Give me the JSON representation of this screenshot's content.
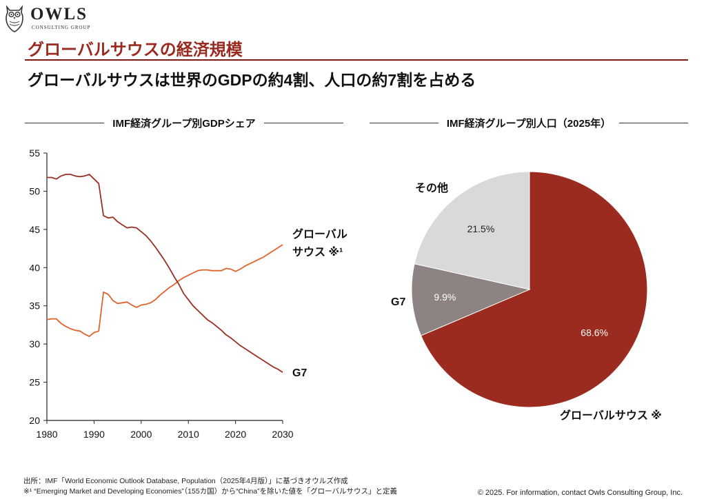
{
  "brand": {
    "name": "OWLS",
    "tagline": "CONSULTING GROUP"
  },
  "page_title": "グローバルサウスの経済規模",
  "headline": "グローバルサウスは世界のGDPの約4割、人口の約7割を占める",
  "colors": {
    "accent": "#9a2a1f",
    "south_line": "#e0612a",
    "g7_line": "#9b2e22",
    "pie_south": "#9b2a1f",
    "pie_g7": "#8d8383",
    "pie_other": "#d9d9db"
  },
  "chart_data": [
    {
      "type": "line",
      "title": "IMF経済グループ別GDPシェア",
      "xlabel": "",
      "ylabel": "",
      "xlim": [
        1980,
        2030
      ],
      "ylim": [
        20,
        55
      ],
      "xticks": [
        1980,
        1990,
        2000,
        2010,
        2020,
        2030
      ],
      "yticks": [
        20,
        25,
        30,
        35,
        40,
        45,
        50,
        55
      ],
      "grid": false,
      "series": [
        {
          "name": "グローバルサウス ※¹",
          "label_lines": [
            "グローバル",
            "サウス ※¹"
          ],
          "x": [
            1980,
            1981,
            1982,
            1983,
            1984,
            1985,
            1986,
            1987,
            1988,
            1989,
            1990,
            1991,
            1992,
            1993,
            1994,
            1995,
            1996,
            1997,
            1998,
            1999,
            2000,
            2001,
            2002,
            2003,
            2004,
            2005,
            2006,
            2007,
            2008,
            2009,
            2010,
            2011,
            2012,
            2013,
            2014,
            2015,
            2016,
            2017,
            2018,
            2019,
            2020,
            2021,
            2022,
            2023,
            2024,
            2025,
            2026,
            2027,
            2028,
            2029,
            2030
          ],
          "values": [
            33.2,
            33.3,
            33.3,
            32.7,
            32.3,
            32.0,
            31.8,
            31.7,
            31.3,
            31.0,
            31.5,
            31.7,
            36.8,
            36.5,
            35.7,
            35.3,
            35.4,
            35.5,
            35.1,
            34.8,
            35.1,
            35.2,
            35.4,
            35.8,
            36.4,
            36.9,
            37.4,
            37.8,
            38.3,
            38.7,
            39.0,
            39.3,
            39.6,
            39.7,
            39.7,
            39.6,
            39.6,
            39.6,
            39.9,
            39.8,
            39.5,
            39.8,
            40.2,
            40.5,
            40.8,
            41.1,
            41.4,
            41.8,
            42.2,
            42.6,
            43.0
          ]
        },
        {
          "name": "G7",
          "label_lines": [
            "G7"
          ],
          "x": [
            1980,
            1981,
            1982,
            1983,
            1984,
            1985,
            1986,
            1987,
            1988,
            1989,
            1990,
            1991,
            1992,
            1993,
            1994,
            1995,
            1996,
            1997,
            1998,
            1999,
            2000,
            2001,
            2002,
            2003,
            2004,
            2005,
            2006,
            2007,
            2008,
            2009,
            2010,
            2011,
            2012,
            2013,
            2014,
            2015,
            2016,
            2017,
            2018,
            2019,
            2020,
            2021,
            2022,
            2023,
            2024,
            2025,
            2026,
            2027,
            2028,
            2029,
            2030
          ],
          "values": [
            51.8,
            51.8,
            51.6,
            52.0,
            52.2,
            52.2,
            52.0,
            51.9,
            52.0,
            52.2,
            51.6,
            51.0,
            46.8,
            46.5,
            46.6,
            46.0,
            45.6,
            45.2,
            45.3,
            45.2,
            44.7,
            44.2,
            43.5,
            42.7,
            41.8,
            40.9,
            39.9,
            38.8,
            37.8,
            36.6,
            35.8,
            35.0,
            34.4,
            33.8,
            33.2,
            32.8,
            32.3,
            31.8,
            31.2,
            30.8,
            30.3,
            29.8,
            29.4,
            29.0,
            28.6,
            28.2,
            27.8,
            27.4,
            27.0,
            26.7,
            26.3
          ]
        }
      ]
    },
    {
      "type": "pie",
      "title": "IMF経済グループ別人口（2025年）",
      "start_angle": "12 o'clock",
      "direction": "clockwise",
      "slices": [
        {
          "name": "グローバルサウス ※¹",
          "value": 68.6,
          "label": "68.6%"
        },
        {
          "name": "G7",
          "value": 9.9,
          "label": "9.9%"
        },
        {
          "name": "その他",
          "value": 21.5,
          "label": "21.5%"
        }
      ]
    }
  ],
  "footnotes": [
    "出所：IMF「World Economic Outlook Database, Population（2025年4月版）」に基づきオウルズ作成",
    "※¹ “Emerging Market and Developing Economies”（155カ国）から“China”を除いた値を「グローバルサウス」と定義"
  ],
  "copyright": "© 2025. For information, contact Owls Consulting Group, Inc."
}
